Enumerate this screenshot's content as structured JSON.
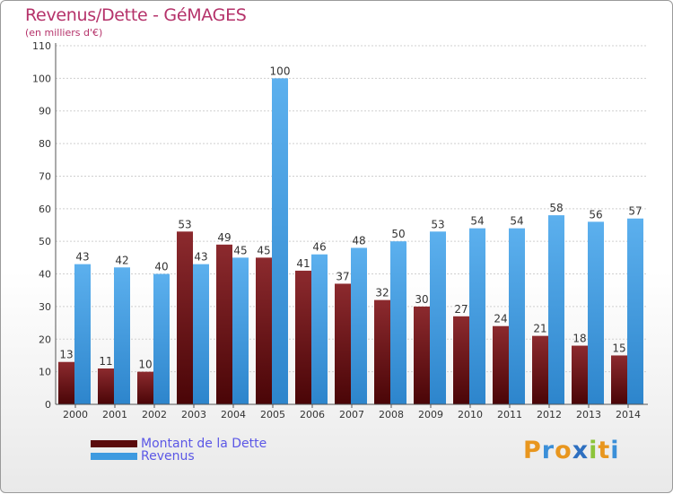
{
  "header": {
    "title": "Revenus/Dette - GéMAGES",
    "subtitle": "(en milliers d'€)"
  },
  "chart_data": {
    "type": "bar",
    "title": "Revenus/Dette - GéMAGES",
    "ylabel": "(en milliers d'€)",
    "xlabel": "",
    "ylim": [
      0,
      110
    ],
    "yticks": [
      0,
      10,
      20,
      30,
      40,
      50,
      60,
      70,
      80,
      90,
      100,
      110
    ],
    "grid": true,
    "categories": [
      "2000",
      "2001",
      "2002",
      "2003",
      "2004",
      "2005",
      "2006",
      "2007",
      "2008",
      "2009",
      "2010",
      "2011",
      "2012",
      "2013",
      "2014"
    ],
    "series": [
      {
        "name": "Montant de la Dette",
        "color": "#7a1a1c",
        "values": [
          13,
          11,
          10,
          53,
          49,
          45,
          41,
          37,
          32,
          30,
          27,
          24,
          21,
          18,
          15
        ]
      },
      {
        "name": "Revenus",
        "color": "#4aa3e6",
        "values": [
          43,
          42,
          40,
          43,
          45,
          100,
          46,
          48,
          50,
          53,
          54,
          54,
          58,
          56,
          57
        ]
      }
    ],
    "legend_position": "bottom-left"
  },
  "legend": {
    "items": [
      {
        "label": "Montant de la Dette",
        "color": "#5a0a0c"
      },
      {
        "label": "Revenus",
        "color": "#3e9ae0"
      }
    ]
  },
  "logo": {
    "letters": [
      "P",
      "r",
      "o",
      "x",
      "i",
      "t",
      "i"
    ],
    "colors": [
      "#e8961e",
      "#3b8fd8",
      "#e8961e",
      "#2d6fc0",
      "#8cc43a",
      "#e8961e",
      "#3b8fd8"
    ]
  }
}
